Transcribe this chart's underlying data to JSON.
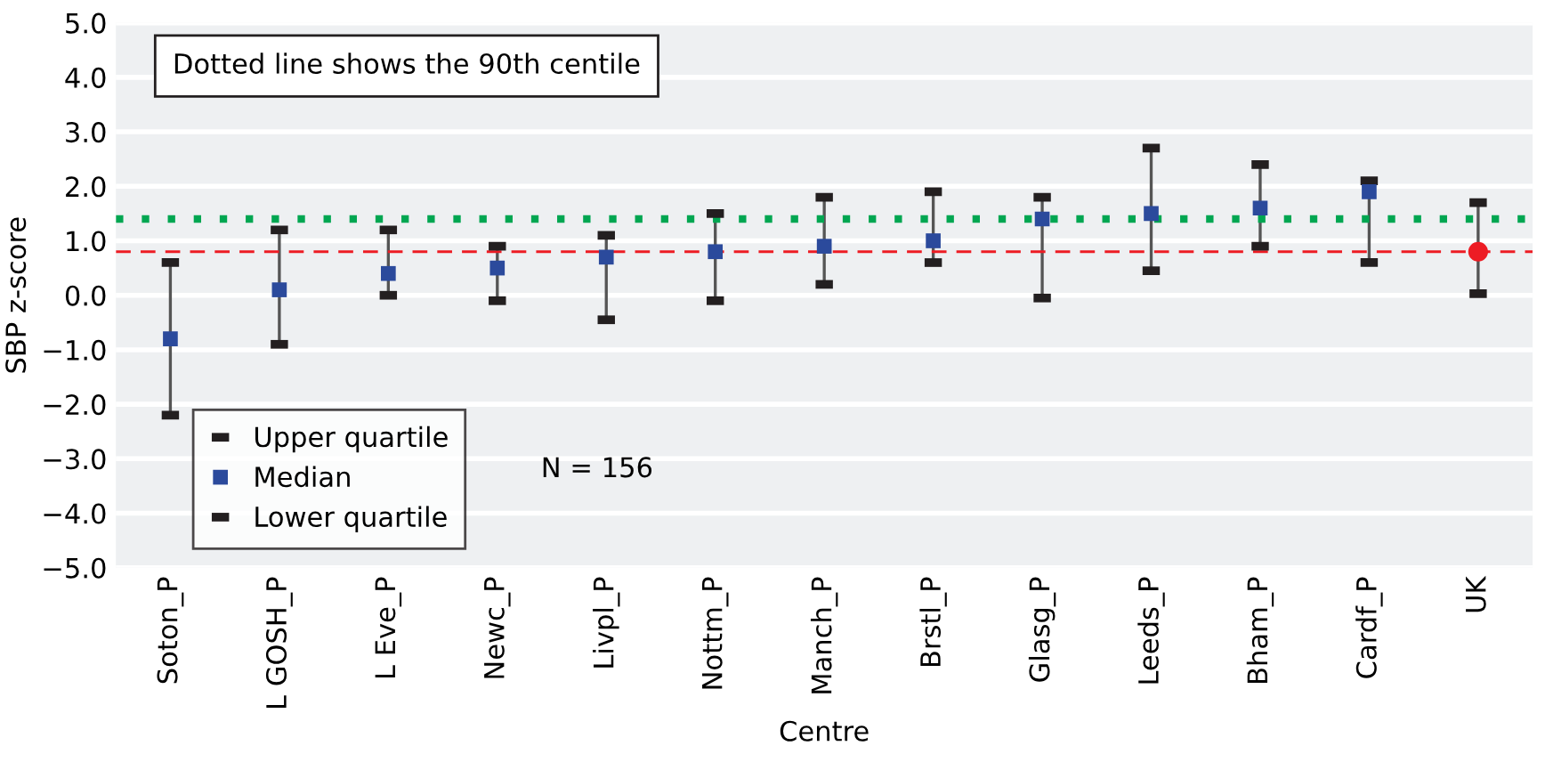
{
  "chart_data": {
    "type": "scatter",
    "xlabel": "Centre",
    "ylabel": "SBP z-score",
    "categories": [
      "Soton_P",
      "L GOSH_P",
      "L Eve_P",
      "Newc_P",
      "Livpl_P",
      "Nottm_P",
      "Manch_P",
      "Brstl_P",
      "Glasg_P",
      "Leeds_P",
      "Bham_P",
      "Cardf_P",
      "UK"
    ],
    "series": [
      {
        "name": "Upper quartile",
        "color": "#231f20",
        "values": [
          0.6,
          1.2,
          1.2,
          0.9,
          1.1,
          1.5,
          1.8,
          1.9,
          1.8,
          2.7,
          2.4,
          2.1,
          1.7
        ]
      },
      {
        "name": "Median",
        "color": "#2b4a9c",
        "marker": "square",
        "values": [
          -0.8,
          0.1,
          0.4,
          0.5,
          0.7,
          0.8,
          0.9,
          1.0,
          1.4,
          1.5,
          1.6,
          1.9,
          null
        ]
      },
      {
        "name": "Lower quartile",
        "color": "#231f20",
        "values": [
          -2.2,
          -0.9,
          0.0,
          -0.1,
          -0.45,
          -0.1,
          0.2,
          0.6,
          -0.05,
          0.45,
          0.9,
          0.6,
          0.03
        ]
      },
      {
        "color": "#ed1c24",
        "marker": "circle",
        "values": [
          null,
          null,
          null,
          null,
          null,
          null,
          null,
          null,
          null,
          null,
          null,
          null,
          0.8
        ]
      }
    ],
    "ref_lines": [
      {
        "axis": "y",
        "value": 1.4,
        "color": "#00a651",
        "line_style": "dotted"
      },
      {
        "axis": "y",
        "value": 0.8,
        "color": "#ed1c24",
        "line_style": "dashed"
      }
    ],
    "annotations": [
      "Dotted line shows the 90th centile",
      "N = 156"
    ],
    "ylim": [
      -5,
      5
    ],
    "yticks": [
      {
        "value": 5,
        "label": "5.0"
      },
      {
        "value": 4,
        "label": "4.0"
      },
      {
        "value": 3,
        "label": "3.0"
      },
      {
        "value": 2,
        "label": "2.0"
      },
      {
        "value": 1,
        "label": "1.0"
      },
      {
        "value": 0,
        "label": "0.0"
      },
      {
        "value": -1,
        "label": "−1.0"
      },
      {
        "value": -2,
        "label": "−2.0"
      },
      {
        "value": -3,
        "label": "−3.0"
      },
      {
        "value": -4,
        "label": "−4.0"
      },
      {
        "value": -5,
        "label": "−5.0"
      }
    ],
    "grid": "y",
    "legend": "bottom left"
  }
}
